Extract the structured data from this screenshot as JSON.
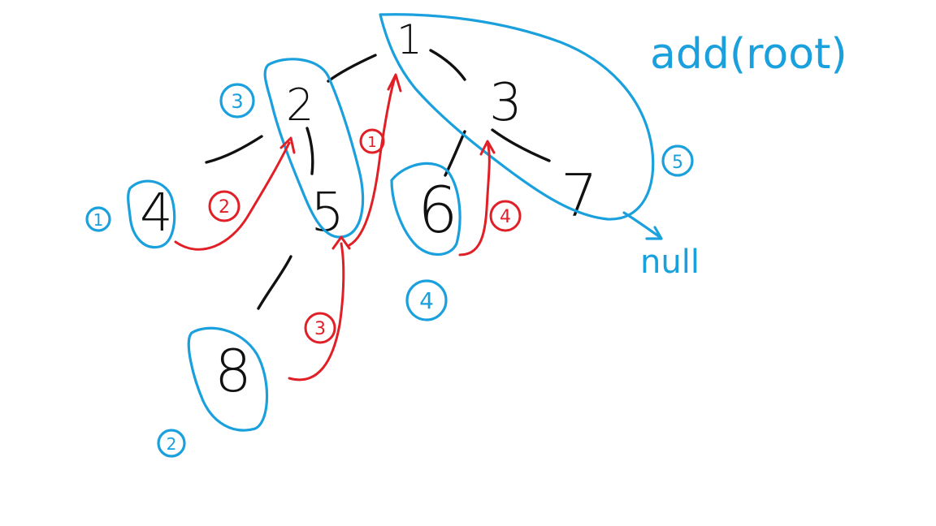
{
  "title": "add(root)",
  "end_label": "null",
  "colors": {
    "tree": "#111111",
    "groups": "#1aa0dc",
    "arrows": "#e11f26"
  },
  "tree": {
    "nodes": [
      {
        "id": "n1",
        "label": "1"
      },
      {
        "id": "n2",
        "label": "2"
      },
      {
        "id": "n3",
        "label": "3"
      },
      {
        "id": "n4",
        "label": "4"
      },
      {
        "id": "n5",
        "label": "5"
      },
      {
        "id": "n6",
        "label": "6"
      },
      {
        "id": "n7",
        "label": "7"
      },
      {
        "id": "n8",
        "label": "8"
      }
    ],
    "edges": [
      {
        "from": "1",
        "to": "2"
      },
      {
        "from": "1",
        "to": "3"
      },
      {
        "from": "2",
        "to": "4"
      },
      {
        "from": "2",
        "to": "5"
      },
      {
        "from": "3",
        "to": "6"
      },
      {
        "from": "3",
        "to": "7"
      },
      {
        "from": "5",
        "to": "8"
      }
    ]
  },
  "groups": [
    {
      "id": "g1",
      "number": "1",
      "contains": [
        "4"
      ]
    },
    {
      "id": "g2",
      "number": "2",
      "contains": [
        "8"
      ]
    },
    {
      "id": "g3",
      "number": "3",
      "contains": [
        "2",
        "5"
      ]
    },
    {
      "id": "g4",
      "number": "4",
      "contains": [
        "6"
      ]
    },
    {
      "id": "g5",
      "number": "5",
      "contains": [
        "1",
        "3",
        "7"
      ]
    }
  ],
  "arrows": [
    {
      "id": "a1",
      "number": "1",
      "from": "5",
      "to": "1"
    },
    {
      "id": "a2",
      "number": "2",
      "from": "4",
      "to": "2"
    },
    {
      "id": "a3",
      "number": "3",
      "from": "8",
      "to": "5"
    },
    {
      "id": "a4",
      "number": "4",
      "from": "6",
      "to": "3"
    }
  ]
}
